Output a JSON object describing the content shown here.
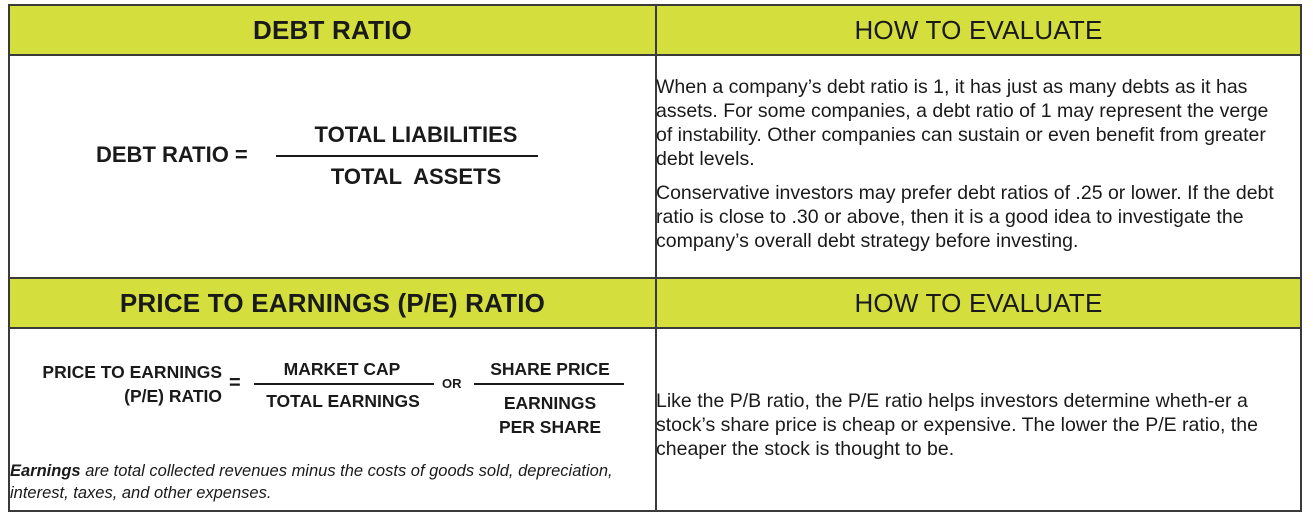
{
  "debt": {
    "header": "DEBT RATIO",
    "formula_label": "DEBT RATIO =",
    "numerator": "TOTAL LIABILITIES",
    "denominator": "TOTAL  ASSETS"
  },
  "debt_eval": {
    "header": "HOW TO EVALUATE",
    "paragraph1": "When a company’s debt ratio is 1, it has just as many debts as it has assets. For some companies, a debt ratio of 1 may represent the verge of instability. Other companies can sustain or even benefit from greater debt levels.",
    "paragraph2": "Conservative investors may prefer debt ratios of .25 or lower. If the debt ratio is close to .30 or above, then it is a good idea to investigate the company’s overall debt strategy before investing."
  },
  "pe": {
    "header": "PRICE TO EARNINGS (P/E) RATIO",
    "label_line1": "PRICE TO EARNINGS",
    "label_line2": "(P/E) RATIO",
    "equals": "=",
    "numerator1": "MARKET CAP",
    "denominator1": "TOTAL EARNINGS",
    "or": "OR",
    "numerator2": "SHARE PRICE",
    "denominator2_line1": "EARNINGS",
    "denominator2_line2": "PER SHARE",
    "note_term": "Earnings",
    "note_rest": " are total collected revenues minus the costs of goods sold, depreciation, interest, taxes, and other expenses."
  },
  "pe_eval": {
    "header": "HOW TO EVALUATE",
    "paragraph": "Like the P/B ratio, the P/E ratio helps investors determine wheth-er a stock’s share price is cheap or expensive. The lower the P/E ratio, the cheaper the stock is thought to be."
  },
  "colors": {
    "header_fill": "#d4df3d",
    "border": "#3a3a3a",
    "text": "#1a1a1a"
  }
}
